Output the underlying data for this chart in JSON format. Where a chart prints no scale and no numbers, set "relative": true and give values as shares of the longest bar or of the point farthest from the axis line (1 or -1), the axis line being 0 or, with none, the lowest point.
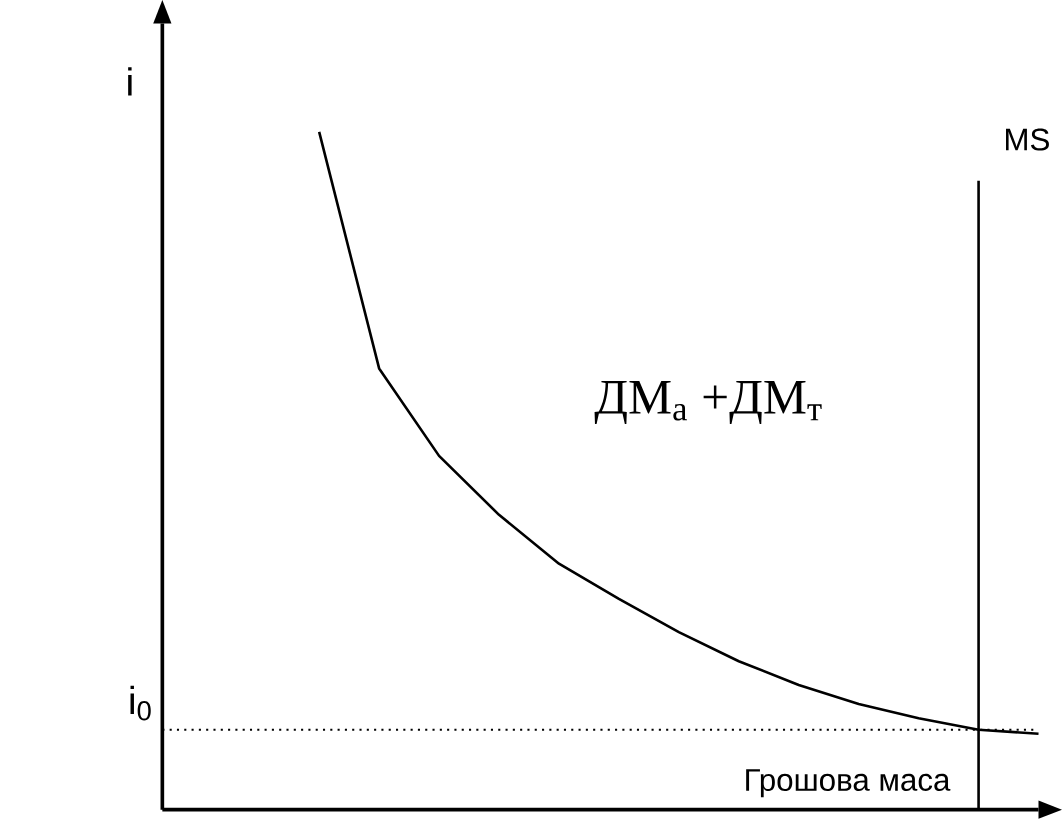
{
  "chart_data": {
    "type": "line",
    "relative": true,
    "ylabel": "i",
    "xlabel": "Грошова маса",
    "categories": [
      null,
      null,
      null,
      null,
      null,
      null,
      null,
      null,
      null,
      null,
      null,
      null,
      null
    ],
    "tick_labels": false,
    "marker": "none",
    "line_style": "solid",
    "series": [
      {
        "name": "ДМ$_{а}$ +ДМ$_{т}$",
        "color": "#000000",
        "values": [
          1.0,
          0.651,
          0.522,
          0.435,
          0.363,
          0.311,
          0.262,
          0.219,
          0.184,
          0.156,
          0.135,
          0.118,
          0.112
        ]
      }
    ],
    "ref_lines": [
      {
        "axis": "y",
        "value": 0.118,
        "label": "i$_{0}$",
        "line_style": "dotted",
        "color": "#000000"
      }
    ],
    "annotations": [
      "MS"
    ]
  }
}
